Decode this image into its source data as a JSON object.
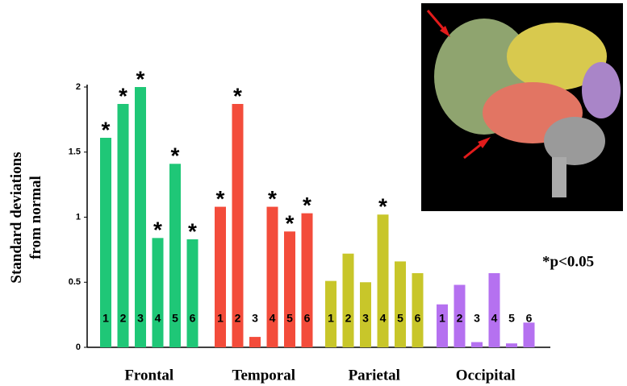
{
  "chart_data": {
    "type": "bar",
    "ylabel": [
      "Standard deviations",
      "from normal"
    ],
    "note": "*p<0.05",
    "categories": [
      "1",
      "2",
      "3",
      "4",
      "5",
      "6"
    ],
    "ylim": [
      0,
      2
    ],
    "yticks": [
      0,
      0.5,
      1,
      1.5,
      2
    ],
    "series": [
      {
        "name": "Frontal",
        "color": "#1fc777",
        "values": [
          1.61,
          1.87,
          2.0,
          0.84,
          1.41,
          0.83
        ],
        "markers": [
          "*",
          "*",
          "*",
          "*",
          "*",
          "*"
        ]
      },
      {
        "name": "Temporal",
        "color": "#f34c3b",
        "values": [
          1.08,
          1.87,
          0.08,
          1.08,
          0.89,
          1.03
        ],
        "markers": [
          "*",
          "*",
          null,
          "*",
          "*",
          "*"
        ]
      },
      {
        "name": "Parietal",
        "color": "#c8c62a",
        "values": [
          0.51,
          0.72,
          0.5,
          1.02,
          0.66,
          0.57
        ],
        "markers": [
          null,
          null,
          null,
          "*",
          null,
          null
        ]
      },
      {
        "name": "Occipital",
        "color": "#b571f0",
        "values": [
          0.33,
          0.48,
          0.04,
          0.57,
          0.03,
          0.19
        ],
        "markers": [
          null,
          null,
          null,
          null,
          null,
          null
        ]
      }
    ]
  }
}
